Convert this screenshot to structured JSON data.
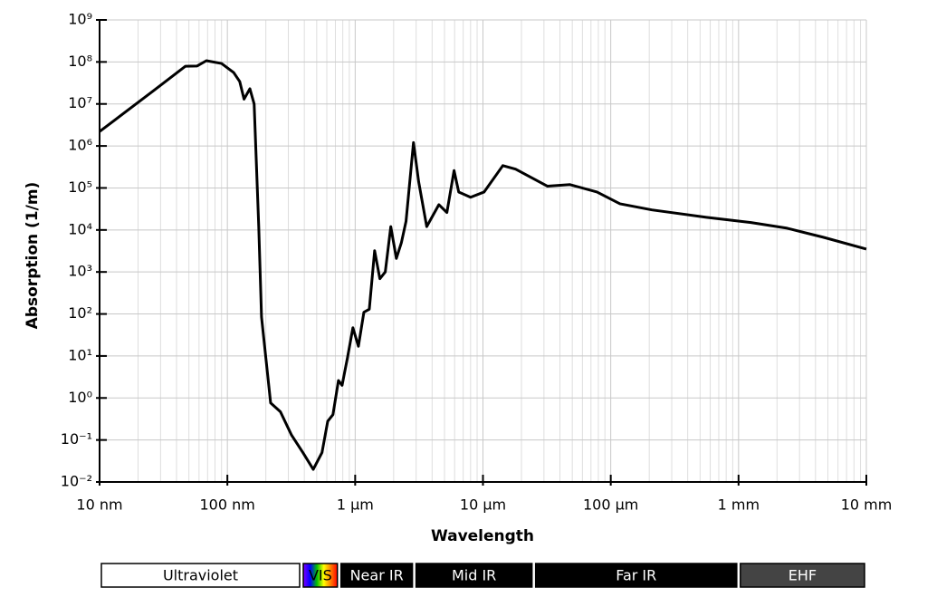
{
  "chart_data": {
    "type": "line",
    "xlabel": "Wavelength",
    "ylabel": "Absorption (1/m)",
    "xscale": "log",
    "yscale": "log",
    "grid": true,
    "color": "#000000",
    "x": [
      10,
      26.6,
      47,
      58,
      68.5,
      90,
      112,
      125,
      135,
      150,
      162,
      176,
      185,
      198,
      218,
      260,
      318,
      390,
      470,
      550,
      610,
      670,
      740,
      790,
      870,
      960,
      1060,
      1170,
      1290,
      1420,
      1560,
      1720,
      1900,
      2100,
      2300,
      2500,
      2860,
      3140,
      3630,
      4520,
      5220,
      5940,
      6460,
      8000,
      10200,
      14300,
      18000,
      32000,
      48000,
      78000,
      118000,
      210000,
      560000,
      1250000,
      2400000,
      4600000,
      10000000
    ],
    "values": [
      2200000,
      21000000,
      79000000,
      80000000,
      107000000,
      92000000,
      56000000,
      34000000,
      13000000,
      23000000,
      10000000,
      12000,
      85,
      12,
      0.76,
      0.47,
      0.13,
      0.05,
      0.02,
      0.05,
      0.28,
      0.4,
      2.6,
      2,
      9,
      47,
      17,
      110,
      130,
      3200,
      690,
      1000,
      12000,
      2100,
      5000,
      16000,
      1200000,
      140000,
      12000,
      40000,
      26000,
      260000,
      80000,
      60000,
      80000,
      340000,
      280000,
      110000,
      120000,
      80000,
      42000,
      30000,
      20000,
      15000,
      11000,
      6700,
      3500
    ],
    "xlim": [
      10,
      10000000
    ],
    "xticks": [
      {
        "value": 10,
        "label": "10 nm"
      },
      {
        "value": 100,
        "label": "100 nm"
      },
      {
        "value": 1000,
        "label": "1 μm"
      },
      {
        "value": 10000,
        "label": "10 μm"
      },
      {
        "value": 100000,
        "label": "100 μm"
      },
      {
        "value": 1000000,
        "label": "1 mm"
      },
      {
        "value": 10000000,
        "label": "10 mm"
      }
    ],
    "ylim": [
      0.01,
      1000000000
    ],
    "yticks": [
      {
        "value": 0.01,
        "label": "10⁻²"
      },
      {
        "value": 0.1,
        "label": "10⁻¹"
      },
      {
        "value": 1,
        "label": "10⁰"
      },
      {
        "value": 10,
        "label": "10¹"
      },
      {
        "value": 100,
        "label": "10²"
      },
      {
        "value": 1000,
        "label": "10³"
      },
      {
        "value": 10000,
        "label": "10⁴"
      },
      {
        "value": 100000,
        "label": "10⁵"
      },
      {
        "value": 1000000,
        "label": "10⁶"
      },
      {
        "value": 10000000,
        "label": "10⁷"
      },
      {
        "value": 100000000,
        "label": "10⁸"
      },
      {
        "value": 1000000000,
        "label": "10⁹"
      }
    ],
    "bands": [
      {
        "name": "Ultraviolet",
        "start": 10,
        "end": 380,
        "color": "#ffffff",
        "text_color": "#000000"
      },
      {
        "name": "VIS",
        "start": 380,
        "end": 750,
        "color": "spectrum",
        "text_color": "#000000"
      },
      {
        "name": "Near IR",
        "start": 750,
        "end": 2900,
        "color": "#000000",
        "text_color": "#ffffff"
      },
      {
        "name": "Mid IR",
        "start": 2900,
        "end": 25000,
        "color": "#000000",
        "text_color": "#ffffff"
      },
      {
        "name": "Far IR",
        "start": 25000,
        "end": 1000000,
        "color": "#000000",
        "text_color": "#ffffff"
      },
      {
        "name": "EHF",
        "start": 1000000,
        "end": 10000000,
        "color": "#444444",
        "text_color": "#ffffff"
      }
    ]
  }
}
